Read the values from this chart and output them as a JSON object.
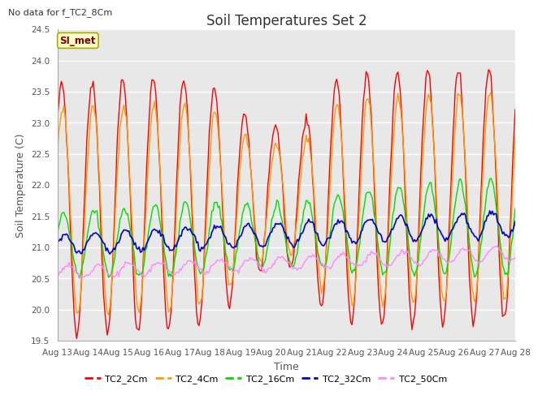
{
  "title": "Soil Temperatures Set 2",
  "xlabel": "Time",
  "ylabel": "Soil Temperature (C)",
  "subtitle": "No data for f_TC2_8Cm",
  "annotation": "SI_met",
  "ylim": [
    19.5,
    24.5
  ],
  "yticks": [
    19.5,
    20.0,
    20.5,
    21.0,
    21.5,
    22.0,
    22.5,
    23.0,
    23.5,
    24.0,
    24.5
  ],
  "date_start": 13,
  "date_end": 28,
  "background_color": "#e8e8e8",
  "grid_color": "#ffffff",
  "series": {
    "TC2_2Cm": {
      "color": "#ff0000",
      "lw": 1.0
    },
    "TC2_4Cm": {
      "color": "#ff9900",
      "lw": 1.0
    },
    "TC2_16Cm": {
      "color": "#00dd00",
      "lw": 1.0
    },
    "TC2_32Cm": {
      "color": "#0000cc",
      "lw": 1.2
    },
    "TC2_50Cm": {
      "color": "#ff88ff",
      "lw": 1.0
    }
  },
  "tick_label_color": "#555555",
  "title_fontsize": 12,
  "axis_label_fontsize": 9,
  "tick_fontsize": 7.5
}
